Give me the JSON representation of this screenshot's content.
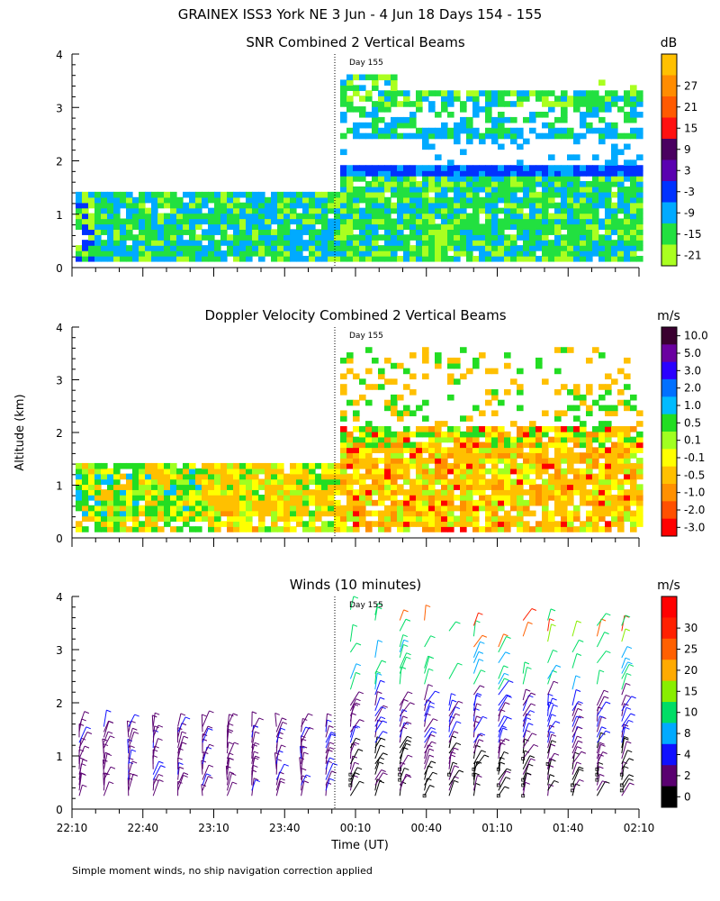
{
  "header": {
    "title": "GRAINEX ISS3 York NE   3 Jun -  4 Jun 18 Days 154 - 155"
  },
  "footer": {
    "note": "Simple moment winds, no ship navigation correction applied"
  },
  "axes": {
    "ylabel": "Altitude (km)",
    "xlabel": "Time (UT)",
    "x_ticks": [
      "22:10",
      "22:40",
      "23:10",
      "23:40",
      "00:10",
      "00:40",
      "01:10",
      "01:40",
      "02:10"
    ],
    "y_ticks": [
      "0",
      "1",
      "2",
      "3",
      "4"
    ],
    "day_marker": "Day 155"
  },
  "chart_data": [
    {
      "type": "heatmap",
      "title": "SNR Combined 2 Vertical Beams",
      "unit": "dB",
      "ylim": [
        0,
        4
      ],
      "colorbar": [
        {
          "label": "27",
          "color": "#ff8c00"
        },
        {
          "label": "21",
          "color": "#ff5a00"
        },
        {
          "label": "15",
          "color": "#ff1010"
        },
        {
          "label": "9",
          "color": "#4a0060"
        },
        {
          "label": "3",
          "color": "#5a00b0"
        },
        {
          "label": "-3",
          "color": "#0032ff"
        },
        {
          "label": "-9",
          "color": "#00aaff"
        },
        {
          "label": "-15",
          "color": "#22e040"
        },
        {
          "label": "-21",
          "color": "#aaff20"
        }
      ],
      "colorbar_top_color": "#ffc000"
    },
    {
      "type": "heatmap",
      "title": "Doppler Velocity Combined 2 Vertical Beams",
      "unit": "m/s",
      "ylim": [
        0,
        4
      ],
      "colorbar": [
        {
          "label": "10.0",
          "color": "#3a0030"
        },
        {
          "label": "5.0",
          "color": "#6a00a0"
        },
        {
          "label": "3.0",
          "color": "#2a00ff"
        },
        {
          "label": "2.0",
          "color": "#0070ff"
        },
        {
          "label": "1.0",
          "color": "#00bbff"
        },
        {
          "label": "0.5",
          "color": "#22dd22"
        },
        {
          "label": "0.1",
          "color": "#a0ff20"
        },
        {
          "label": "-0.1",
          "color": "#ffff00"
        },
        {
          "label": "-0.5",
          "color": "#ffc000"
        },
        {
          "label": "-1.0",
          "color": "#ff9000"
        },
        {
          "label": "-2.0",
          "color": "#ff5000"
        },
        {
          "label": "-3.0",
          "color": "#ff0000"
        }
      ]
    },
    {
      "type": "scatter",
      "title": "Winds (10 minutes)",
      "unit": "m/s",
      "ylim": [
        0,
        4
      ],
      "colorbar": [
        {
          "label": "30",
          "color": "#ff2000"
        },
        {
          "label": "25",
          "color": "#ff6000"
        },
        {
          "label": "20",
          "color": "#ffaa00"
        },
        {
          "label": "15",
          "color": "#88ee00"
        },
        {
          "label": "10",
          "color": "#00dd66"
        },
        {
          "label": "8",
          "color": "#00aaff"
        },
        {
          "label": "4",
          "color": "#1010ff"
        },
        {
          "label": "2",
          "color": "#5a0070"
        },
        {
          "label": "0",
          "color": "#000000"
        }
      ],
      "colorbar_top_color": "#ff0000"
    }
  ]
}
